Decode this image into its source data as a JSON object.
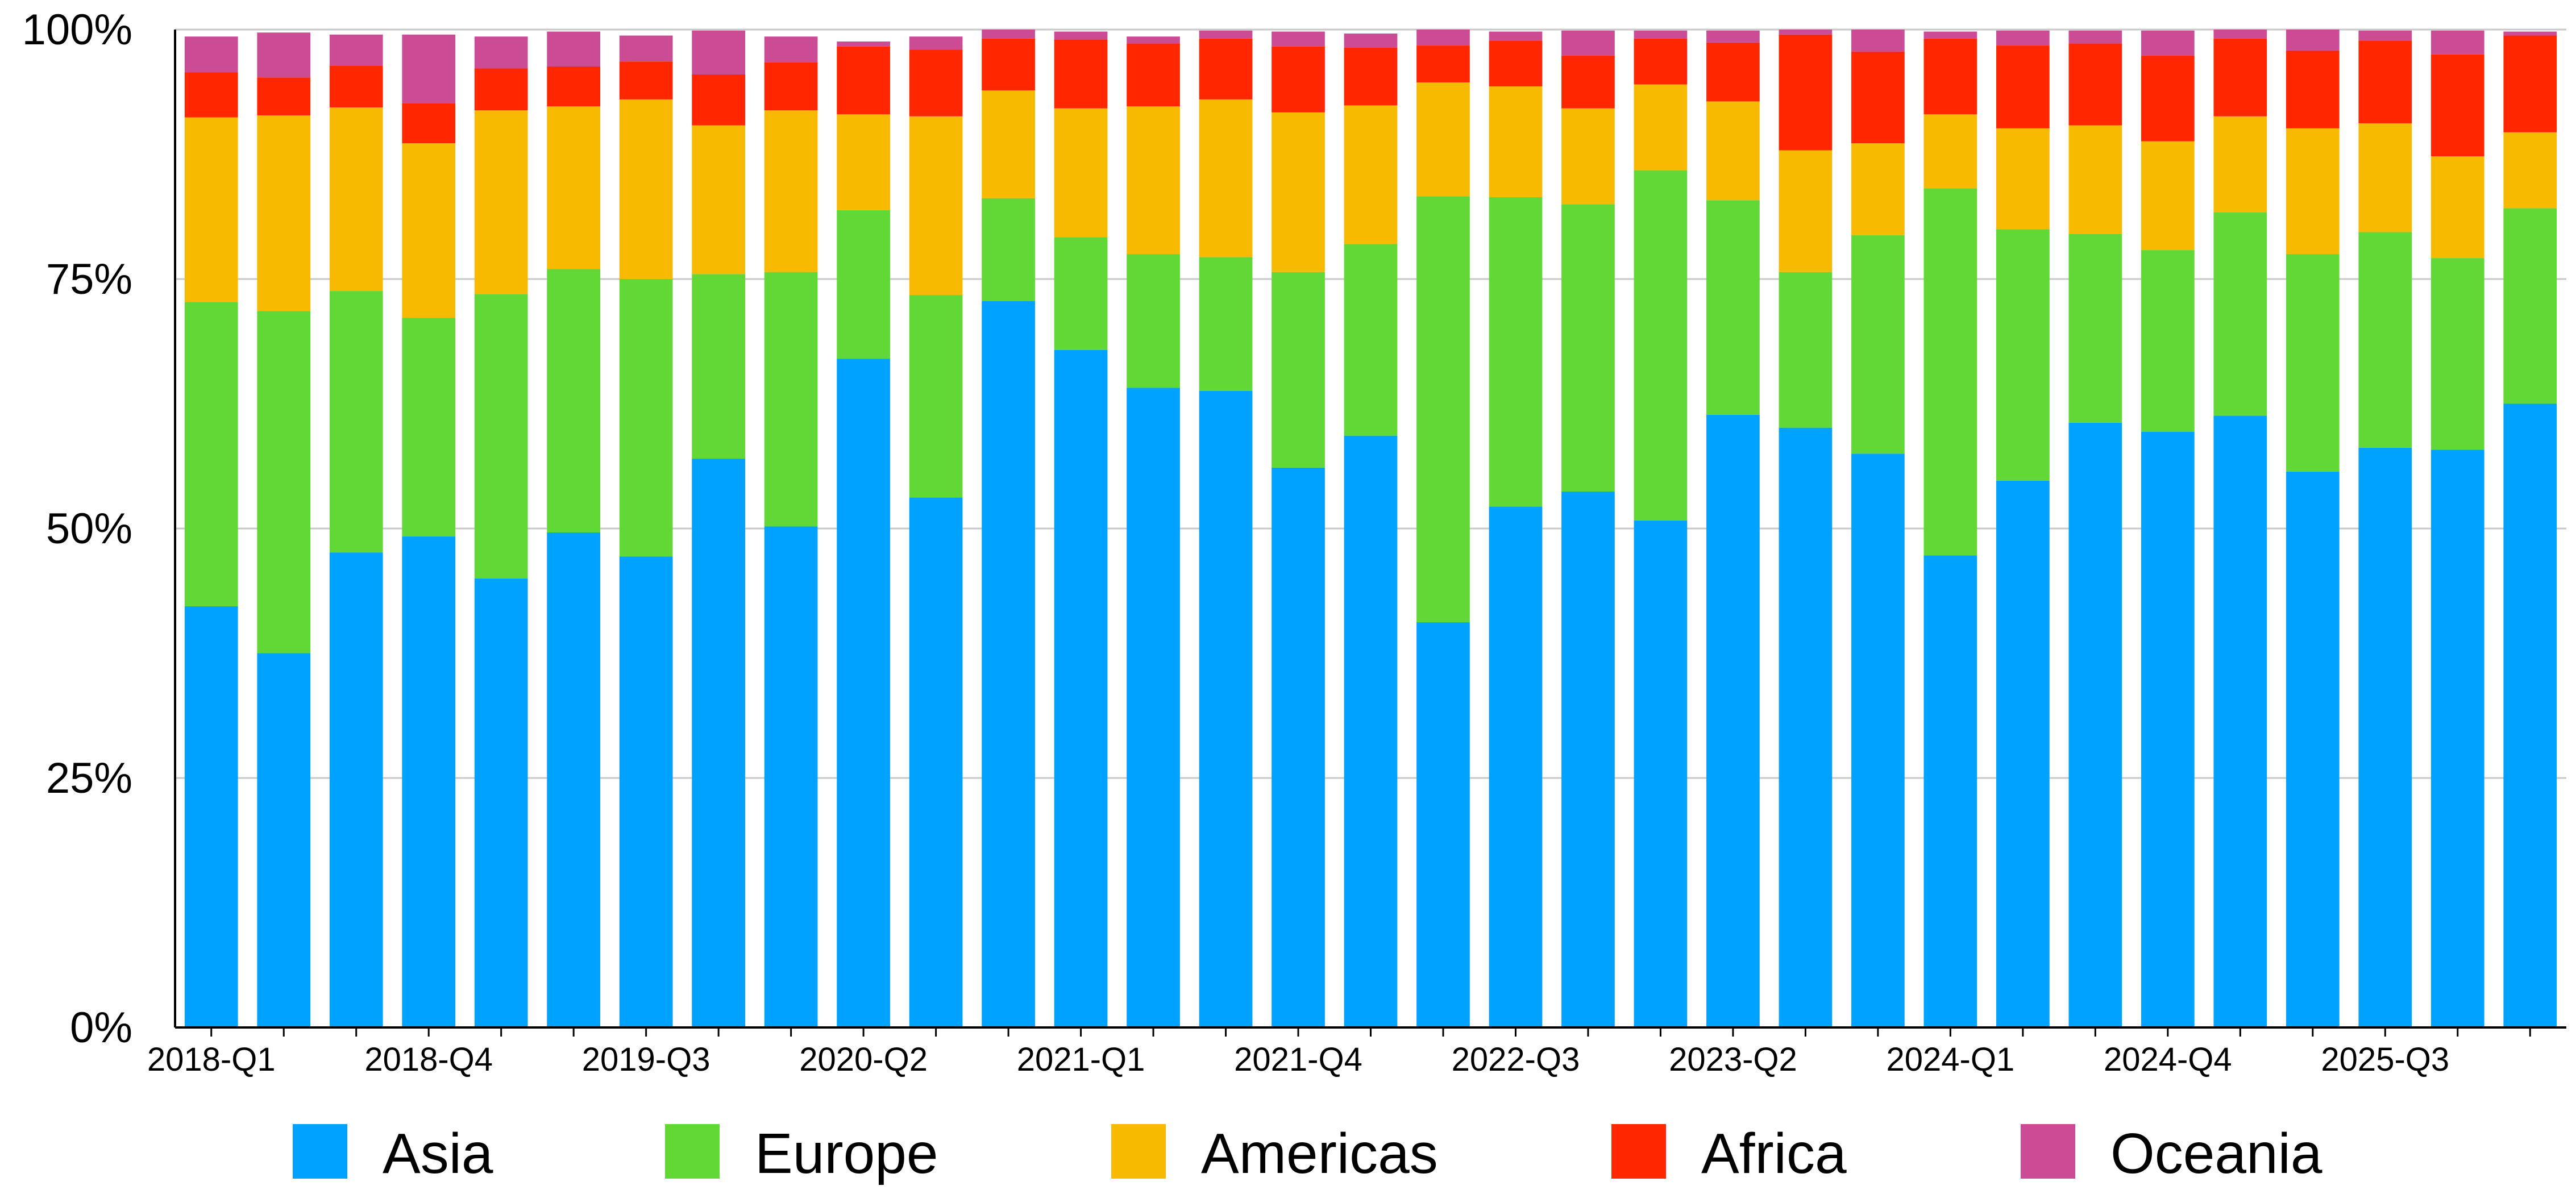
{
  "chart_data": {
    "type": "bar",
    "stacked": true,
    "normalized_percent": true,
    "categories": [
      "2018-Q1",
      "2018-Q2",
      "2018-Q3",
      "2018-Q4",
      "2019-Q1",
      "2019-Q2",
      "2019-Q3",
      "2019-Q4",
      "2020-Q1",
      "2020-Q2",
      "2020-Q3",
      "2020-Q4",
      "2021-Q1",
      "2021-Q2",
      "2021-Q3",
      "2021-Q4",
      "2022-Q1",
      "2022-Q2",
      "2022-Q3",
      "2022-Q4",
      "2023-Q1",
      "2023-Q2",
      "2023-Q3",
      "2023-Q4",
      "2024-Q1",
      "2024-Q2",
      "2024-Q3",
      "2024-Q4",
      "2025-Q1",
      "2025-Q2",
      "2025-Q3",
      "2025-Q4",
      "2026-Q1"
    ],
    "x_tick_labels": [
      "2018-Q1",
      "2018-Q4",
      "2019-Q3",
      "2020-Q2",
      "2021-Q1",
      "2021-Q4",
      "2022-Q3",
      "2023-Q2",
      "2024-Q1",
      "2024-Q4",
      "2025-Q3"
    ],
    "series": [
      {
        "name": "Asia",
        "color": "#00A2FF",
        "values": [
          42.2,
          37.5,
          47.6,
          49.2,
          45.0,
          49.6,
          47.2,
          57.0,
          50.2,
          67.0,
          53.1,
          72.8,
          67.9,
          64.1,
          63.8,
          56.1,
          59.3,
          40.6,
          52.2,
          53.7,
          50.8,
          61.4,
          60.1,
          57.5,
          47.3,
          54.8,
          60.6,
          59.7,
          61.3,
          55.7,
          58.1,
          57.9,
          62.5
        ]
      },
      {
        "name": "Europe",
        "color": "#61D836",
        "values": [
          30.5,
          34.3,
          26.2,
          21.9,
          28.5,
          26.4,
          27.8,
          18.5,
          25.5,
          14.9,
          20.3,
          10.3,
          11.3,
          13.4,
          13.4,
          19.6,
          19.2,
          42.7,
          31.0,
          28.8,
          35.1,
          21.5,
          15.6,
          21.9,
          36.8,
          25.2,
          18.9,
          18.2,
          20.4,
          21.8,
          21.6,
          19.2,
          19.6
        ]
      },
      {
        "name": "Americas",
        "color": "#F8BA00",
        "values": [
          18.5,
          19.6,
          18.4,
          17.5,
          18.4,
          16.3,
          18.0,
          14.9,
          16.2,
          9.6,
          17.9,
          10.8,
          12.9,
          14.8,
          15.8,
          16.0,
          13.9,
          11.4,
          11.1,
          9.6,
          8.6,
          9.9,
          12.2,
          9.2,
          7.4,
          10.1,
          10.9,
          10.9,
          9.6,
          12.6,
          10.9,
          10.2,
          7.6
        ]
      },
      {
        "name": "Africa",
        "color": "#FF2600",
        "values": [
          4.5,
          3.8,
          4.2,
          4.0,
          4.2,
          4.0,
          3.8,
          5.1,
          4.8,
          6.8,
          6.7,
          5.2,
          6.9,
          6.3,
          6.1,
          6.6,
          5.8,
          3.7,
          4.6,
          5.3,
          4.6,
          5.9,
          11.6,
          9.2,
          7.6,
          8.3,
          8.2,
          8.6,
          7.8,
          7.8,
          8.3,
          10.2,
          9.7
        ]
      },
      {
        "name": "Oceania",
        "color": "#CB4C95",
        "values": [
          3.6,
          4.5,
          3.1,
          6.9,
          3.2,
          3.5,
          2.6,
          4.4,
          2.6,
          0.5,
          1.3,
          0.9,
          0.8,
          0.7,
          0.8,
          1.5,
          1.4,
          1.6,
          0.9,
          2.5,
          0.8,
          1.2,
          0.5,
          2.2,
          0.7,
          1.5,
          1.3,
          2.5,
          0.9,
          2.1,
          1.0,
          2.4,
          0.4
        ]
      }
    ],
    "y_tick_labels": [
      "0%",
      "25%",
      "50%",
      "75%",
      "100%"
    ],
    "ylim": [
      0,
      100
    ],
    "grid": true,
    "legend_position": "bottom",
    "title": "",
    "xlabel": "",
    "ylabel": ""
  }
}
